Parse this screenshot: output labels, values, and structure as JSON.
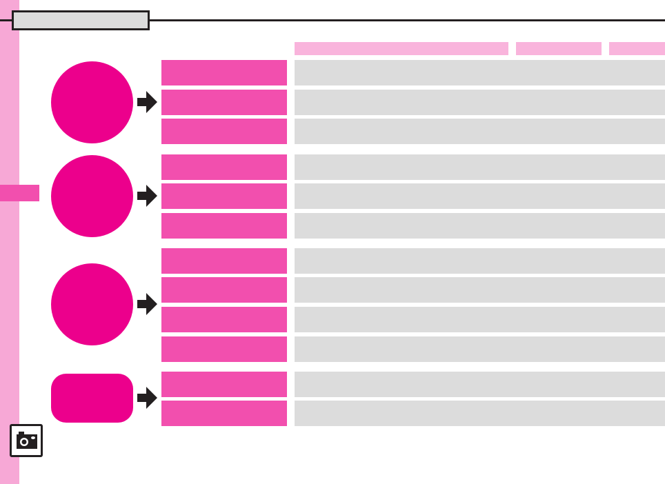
{
  "colors": {
    "sidebar_strip": "#f7a8d6",
    "active_tab": "#f24fae",
    "header_cell": "#f9b4dc",
    "row_label": "#f24fae",
    "row_value": "#dcdcdc",
    "group_marker": "#ec008c",
    "line": "#231f20"
  },
  "icons": {
    "arrow": "arrow-right-icon",
    "camera": "camera-icon"
  },
  "title": "",
  "header_cells": [
    "",
    "",
    ""
  ],
  "groups": [
    {
      "marker": "circle",
      "rows": [
        "",
        "",
        ""
      ]
    },
    {
      "marker": "circle",
      "rows": [
        "",
        "",
        ""
      ]
    },
    {
      "marker": "circle",
      "rows": [
        "",
        "",
        "",
        ""
      ]
    },
    {
      "marker": "rounded-rect",
      "rows": [
        "",
        ""
      ]
    }
  ]
}
